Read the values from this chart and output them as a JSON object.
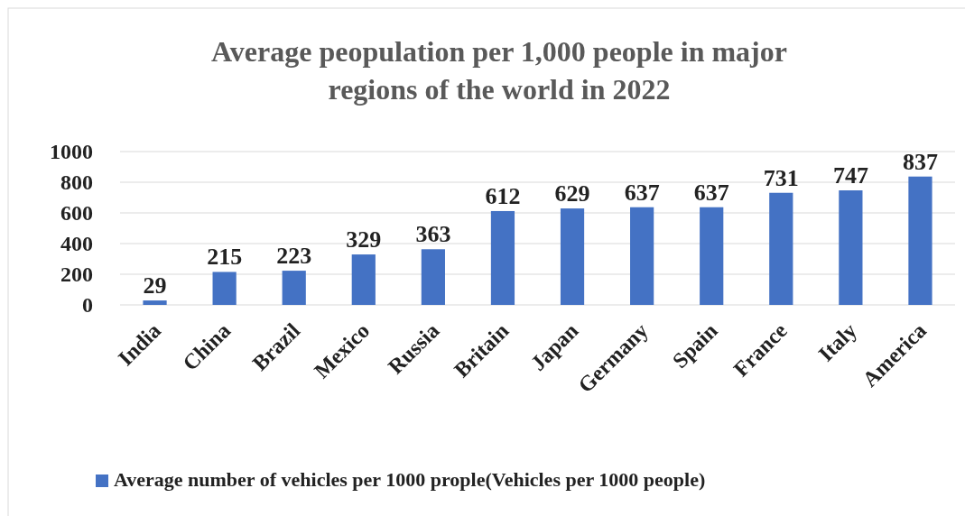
{
  "chart_data": {
    "type": "bar",
    "title": "Average peopulation per 1,000 people in major regions of the world in 2022",
    "categories": [
      "India",
      "China",
      "Brazil",
      "Mexico",
      "Russia",
      "Britain",
      "Japan",
      "Germany",
      "Spain",
      "France",
      "Italy",
      "America"
    ],
    "series": [
      {
        "name": "Average number of vehicles per 1000 prople(Vehicles per 1000 people)",
        "color": "#4472c4",
        "values": [
          29,
          215,
          223,
          329,
          363,
          612,
          629,
          637,
          637,
          731,
          747,
          837
        ]
      }
    ],
    "ylim": [
      0,
      1000
    ],
    "yticks": [
      0,
      200,
      400,
      600,
      800,
      1000
    ],
    "grid": "y",
    "legend": "bottom",
    "data_labels": true
  }
}
